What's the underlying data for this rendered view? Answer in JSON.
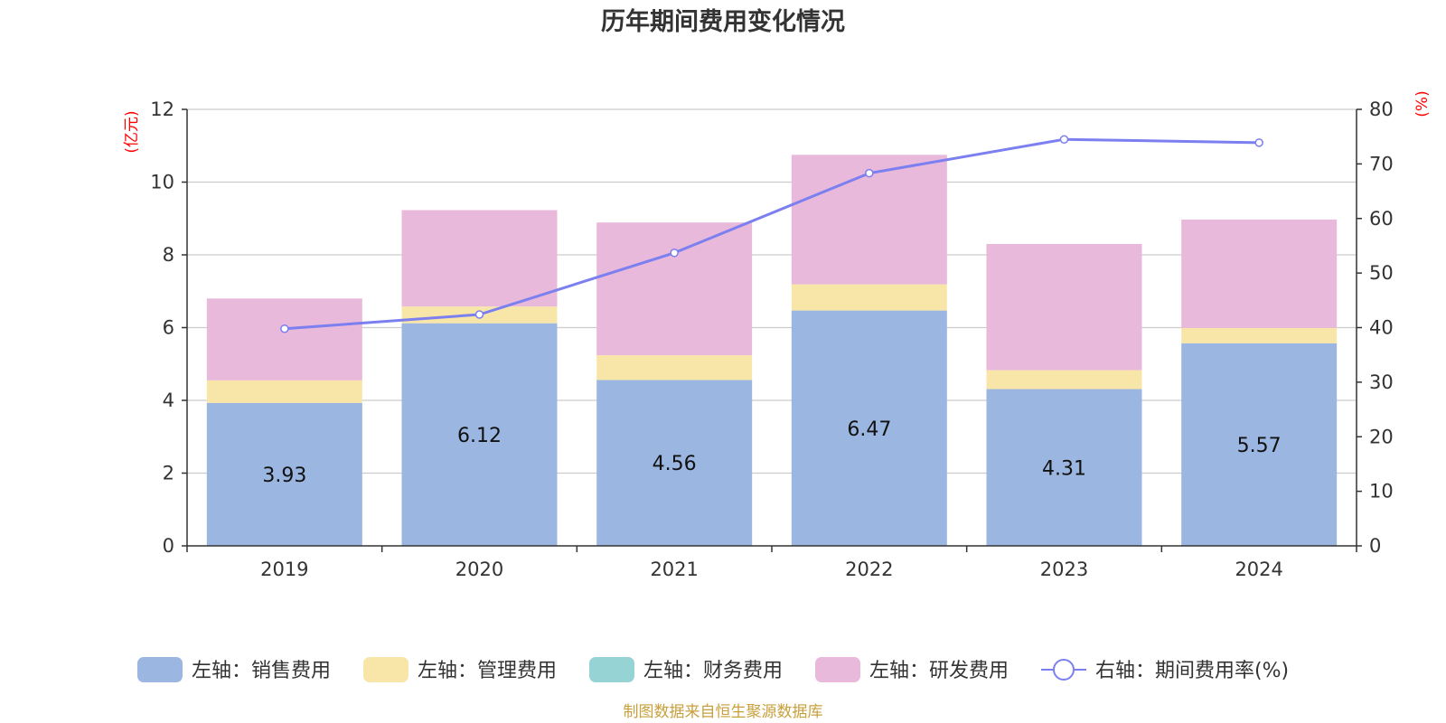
{
  "chart_data": {
    "type": "bar",
    "stacked": true,
    "title": "历年期间费用变化情况",
    "categories": [
      "2019",
      "2020",
      "2021",
      "2022",
      "2023",
      "2024"
    ],
    "left_axis": {
      "unit": "(亿元)",
      "ylim": [
        0,
        12
      ],
      "ticks": [
        "0",
        "2",
        "4",
        "6",
        "8",
        "10",
        "12"
      ]
    },
    "right_axis": {
      "unit": "(%)",
      "ylim": [
        0,
        80
      ],
      "ticks": [
        "0",
        "10",
        "20",
        "30",
        "40",
        "50",
        "60",
        "70",
        "80"
      ]
    },
    "series": [
      {
        "name": "左轴：销售费用",
        "type": "bar",
        "axis": "left",
        "color": "#9bb7e1",
        "values": [
          3.93,
          6.12,
          4.56,
          6.47,
          4.31,
          5.57
        ],
        "labels": [
          "3.93",
          "6.12",
          "4.56",
          "6.47",
          "4.31",
          "5.57"
        ]
      },
      {
        "name": "左轴：管理费用",
        "type": "bar",
        "axis": "left",
        "color": "#f8e6a8",
        "values": [
          0.62,
          0.46,
          0.68,
          0.72,
          0.52,
          0.42
        ]
      },
      {
        "name": "左轴：财务费用",
        "type": "bar",
        "axis": "left",
        "color": "#96d3d5",
        "values": [
          0,
          0,
          0,
          0,
          0,
          0
        ]
      },
      {
        "name": "左轴：研发费用",
        "type": "bar",
        "axis": "left",
        "color": "#e8b9da",
        "values": [
          2.25,
          2.65,
          3.65,
          3.56,
          3.47,
          2.98
        ]
      },
      {
        "name": "右轴：期间费用率(%)",
        "type": "line",
        "axis": "right",
        "color": "#7b7ff0",
        "values": [
          39.8,
          42.4,
          53.7,
          68.3,
          74.5,
          73.9
        ]
      }
    ],
    "grid": true,
    "legend_position": "bottom",
    "source": "制图数据来自恒生聚源数据库"
  },
  "colors": {
    "unit_label": "#ff0000",
    "source": "#c8a03c",
    "grid": "#cccccc",
    "axis": "#333333"
  }
}
